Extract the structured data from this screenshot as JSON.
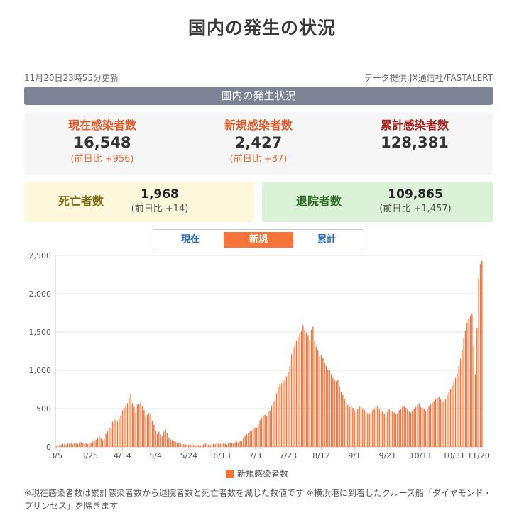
{
  "page_title": "国内の発生の状況",
  "updated": "11月20日23時55分更新",
  "source": "データ提供:JX通信社/FASTALERT",
  "section_title": "国内の発生状況",
  "stats": {
    "current": {
      "label": "現在感染者数",
      "value": "16,548",
      "diff": "(前日比 +956)"
    },
    "new": {
      "label": "新規感染者数",
      "value": "2,427",
      "diff": "(前日比 +37)"
    },
    "total": {
      "label": "累計感染者数",
      "value": "128,381"
    }
  },
  "deaths": {
    "label": "死亡者数",
    "value": "1,968",
    "diff": "(前日比 +14)"
  },
  "recovered": {
    "label": "退院者数",
    "value": "109,865",
    "diff": "(前日比 +1,457)"
  },
  "tabs": {
    "current": "現在",
    "new": "新規",
    "total": "累計"
  },
  "colors": {
    "bar": "#f6733a",
    "grid": "#e6e6e6",
    "axis": "#cccccc"
  },
  "chart_data": {
    "type": "bar",
    "title": "",
    "xlabel": "",
    "ylabel": "",
    "ylim": [
      0,
      2500
    ],
    "yticks": [
      0,
      500,
      1000,
      1500,
      2000,
      2500
    ],
    "ytick_labels": [
      "0",
      "500",
      "1,000",
      "1,500",
      "2,000",
      "2,500"
    ],
    "xtick_labels": [
      "3/5",
      "3/25",
      "4/14",
      "5/4",
      "5/24",
      "6/13",
      "7/3",
      "7/23",
      "8/12",
      "9/1",
      "9/21",
      "10/11",
      "10/31",
      "11/20"
    ],
    "xtick_index": [
      0,
      20,
      40,
      60,
      80,
      100,
      120,
      140,
      160,
      180,
      200,
      220,
      240,
      260
    ],
    "categories_start": "3/5",
    "categories_end": "11/20",
    "legend": "新規感染者数",
    "series": [
      {
        "name": "新規感染者数",
        "values": [
          20,
          15,
          25,
          30,
          40,
          35,
          25,
          45,
          40,
          55,
          30,
          50,
          45,
          40,
          60,
          65,
          45,
          40,
          50,
          35,
          45,
          55,
          70,
          80,
          95,
          120,
          150,
          110,
          90,
          100,
          170,
          200,
          250,
          240,
          330,
          360,
          350,
          330,
          370,
          410,
          480,
          510,
          540,
          570,
          640,
          700,
          570,
          520,
          450,
          550,
          560,
          580,
          530,
          480,
          390,
          420,
          440,
          430,
          340,
          290,
          210,
          170,
          200,
          160,
          140,
          200,
          230,
          180,
          120,
          100,
          90,
          80,
          70,
          60,
          50,
          45,
          40,
          35,
          30,
          30,
          25,
          30,
          35,
          25,
          20,
          30,
          25,
          20,
          30,
          35,
          45,
          40,
          30,
          25,
          30,
          40,
          35,
          50,
          45,
          40,
          45,
          50,
          40,
          30,
          50,
          60,
          55,
          50,
          60,
          70,
          60,
          75,
          80,
          110,
          140,
          165,
          180,
          200,
          210,
          230,
          250,
          250,
          300,
          350,
          380,
          410,
          420,
          400,
          460,
          470,
          540,
          600,
          600,
          700,
          780,
          820,
          830,
          860,
          880,
          920,
          980,
          1050,
          1210,
          1280,
          1320,
          1390,
          1430,
          1480,
          1520,
          1590,
          1530,
          1490,
          1460,
          1400,
          1530,
          1570,
          1380,
          1310,
          1260,
          1180,
          1200,
          1160,
          1100,
          1060,
          1010,
          1000,
          950,
          900,
          880,
          860,
          880,
          790,
          720,
          680,
          630,
          590,
          550,
          520,
          530,
          510,
          480,
          450,
          500,
          530,
          520,
          500,
          480,
          460,
          440,
          430,
          450,
          480,
          500,
          520,
          540,
          500,
          470,
          460,
          430,
          420,
          460,
          490,
          470,
          460,
          450,
          430,
          440,
          480,
          500,
          520,
          530,
          510,
          490,
          460,
          450,
          470,
          500,
          520,
          550,
          570,
          520,
          510,
          490,
          470,
          500,
          530,
          560,
          580,
          600,
          620,
          640,
          660,
          620,
          590,
          600,
          620,
          680,
          720,
          750,
          800,
          840,
          900,
          960,
          1050,
          1150,
          1260,
          1420,
          1520,
          1620,
          1680,
          1710,
          1740,
          1320,
          950,
          1550,
          2200,
          2390,
          2427
        ]
      }
    ]
  }
}
